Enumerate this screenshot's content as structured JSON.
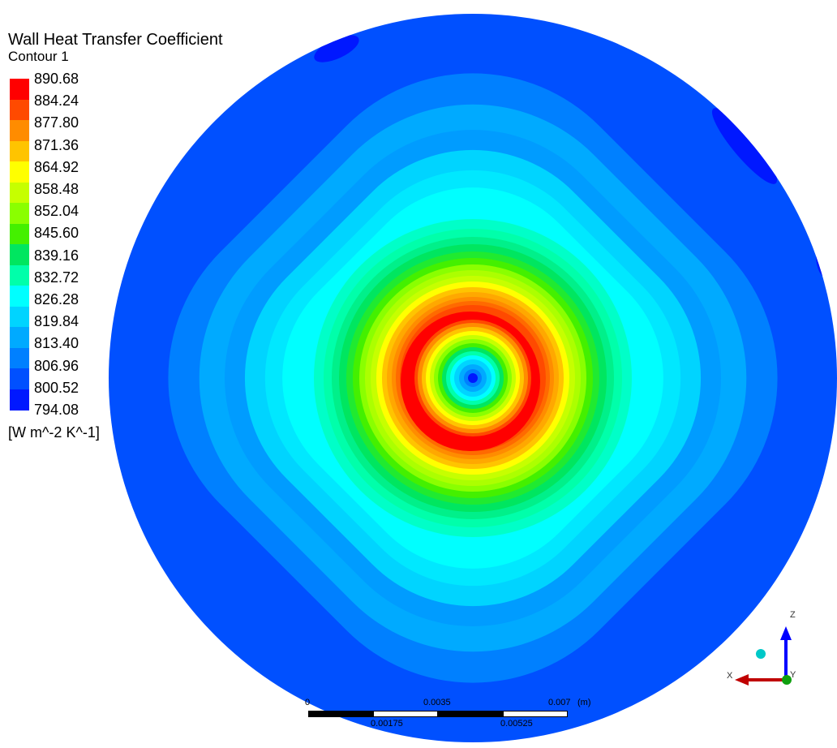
{
  "legend": {
    "title": "Wall Heat Transfer Coefficient",
    "subtitle": "Contour 1",
    "units": "[W m^-2 K^-1]",
    "levels": [
      "890.68",
      "884.24",
      "877.80",
      "871.36",
      "864.92",
      "858.48",
      "852.04",
      "845.60",
      "839.16",
      "832.72",
      "826.28",
      "819.84",
      "813.40",
      "806.96",
      "800.52",
      "794.08"
    ],
    "colors": [
      "#ff0000",
      "#ff4a00",
      "#ff8c00",
      "#ffc400",
      "#ffff00",
      "#c6ff00",
      "#8aff00",
      "#44f000",
      "#00e660",
      "#00ffaa",
      "#00ffff",
      "#00d4ff",
      "#00aaff",
      "#0080ff",
      "#0050ff",
      "#0018ff"
    ]
  },
  "contour": {
    "field": "Wall Heat Transfer Coefficient",
    "min": 794.08,
    "max": 890.68
  },
  "scale_bar": {
    "top_labels": [
      "0",
      "0.0035",
      "0.007"
    ],
    "bottom_labels": [
      "0.00175",
      "0.00525"
    ],
    "unit": "(m)"
  },
  "axes": {
    "z_label": "Z",
    "x_label": "X",
    "y_label": "Y",
    "z_color": "#0000ff",
    "x_color": "#c00000",
    "y_color": "#00a000"
  }
}
